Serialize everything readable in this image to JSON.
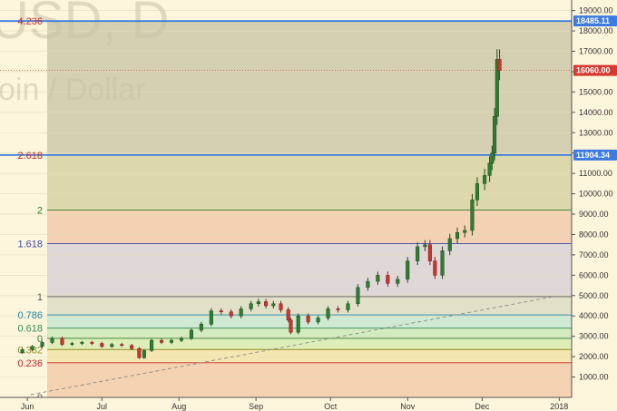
{
  "watermark": {
    "line1": "USD, D",
    "line2": "oin / Dollar"
  },
  "price_tags": [
    {
      "label": "18485.11",
      "value": 18485.11,
      "color": "#3d7be0"
    },
    {
      "label": "16060.00",
      "value": 16060.0,
      "color": "#d6392f"
    },
    {
      "label": "11904.34",
      "value": 11904.34,
      "color": "#3d7be0"
    }
  ],
  "chart_data": {
    "type": "line",
    "title": "",
    "ylabel": "",
    "xlabel": "",
    "ylim": [
      0,
      19250
    ],
    "y_ticks": [
      "1000.00",
      "2000.00",
      "3000.00",
      "4000.00",
      "5000.00",
      "6000.00",
      "7000.00",
      "8000.00",
      "9000.00",
      "10000.00",
      "11000.00",
      "12000.00",
      "13000.00",
      "14000.00",
      "15000.00",
      "16000.00",
      "17000.00",
      "18000.00",
      "19000.00"
    ],
    "x_ticks": [
      "Jun",
      "Jul",
      "Aug",
      "Sep",
      "Oct",
      "Nov",
      "Dec",
      "2018"
    ],
    "fib_levels": [
      {
        "label": "0",
        "value": 2900,
        "color": "#2e7d32"
      },
      {
        "label": "0.236",
        "value": 1700,
        "color": "#c62828"
      },
      {
        "label": "0",
        "value": 0,
        "color": "#555555"
      },
      {
        "label": "0.382",
        "value": 2350,
        "color": "#8e8e20"
      },
      {
        "label": "0.618",
        "value": 3400,
        "color": "#2e8b57"
      },
      {
        "label": "0.786",
        "value": 4050,
        "color": "#1e88a8"
      },
      {
        "label": "1",
        "value": 4950,
        "color": "#555555"
      },
      {
        "label": "1.618",
        "value": 7550,
        "color": "#3949ab"
      },
      {
        "label": "2",
        "value": 9200,
        "color": "#2e7d32"
      },
      {
        "label": "2.618",
        "value": 11904,
        "color": "#c62828"
      },
      {
        "label": "4.236",
        "value": 18485,
        "color": "#c62828"
      }
    ],
    "series": [
      {
        "values": [
          [
            "2017-05-26",
            2200
          ],
          [
            "2017-05-30",
            2350
          ],
          [
            "2017-06-03",
            2500
          ],
          [
            "2017-06-07",
            2700
          ],
          [
            "2017-06-11",
            2900
          ],
          [
            "2017-06-15",
            2600
          ],
          [
            "2017-06-19",
            2650
          ],
          [
            "2017-06-23",
            2700
          ],
          [
            "2017-06-27",
            2650
          ],
          [
            "2017-07-01",
            2500
          ],
          [
            "2017-07-05",
            2600
          ],
          [
            "2017-07-09",
            2550
          ],
          [
            "2017-07-13",
            2400
          ],
          [
            "2017-07-16",
            1950
          ],
          [
            "2017-07-18",
            2300
          ],
          [
            "2017-07-21",
            2800
          ],
          [
            "2017-07-25",
            2700
          ],
          [
            "2017-07-29",
            2800
          ],
          [
            "2017-08-02",
            2900
          ],
          [
            "2017-08-06",
            3300
          ],
          [
            "2017-08-10",
            3600
          ],
          [
            "2017-08-14",
            4250
          ],
          [
            "2017-08-18",
            4200
          ],
          [
            "2017-08-22",
            4000
          ],
          [
            "2017-08-26",
            4350
          ],
          [
            "2017-08-30",
            4600
          ],
          [
            "2017-09-02",
            4700
          ],
          [
            "2017-09-05",
            4500
          ],
          [
            "2017-09-08",
            4600
          ],
          [
            "2017-09-11",
            4300
          ],
          [
            "2017-09-14",
            3800
          ],
          [
            "2017-09-15",
            3200
          ],
          [
            "2017-09-18",
            4000
          ],
          [
            "2017-09-22",
            3700
          ],
          [
            "2017-09-26",
            3900
          ],
          [
            "2017-09-30",
            4350
          ],
          [
            "2017-10-04",
            4300
          ],
          [
            "2017-10-08",
            4600
          ],
          [
            "2017-10-12",
            5400
          ],
          [
            "2017-10-16",
            5700
          ],
          [
            "2017-10-20",
            6000
          ],
          [
            "2017-10-24",
            5600
          ],
          [
            "2017-10-28",
            5800
          ],
          [
            "2017-11-01",
            6700
          ],
          [
            "2017-11-05",
            7400
          ],
          [
            "2017-11-08",
            7500
          ],
          [
            "2017-11-10",
            6700
          ],
          [
            "2017-11-12",
            6000
          ],
          [
            "2017-11-15",
            7200
          ],
          [
            "2017-11-18",
            7800
          ],
          [
            "2017-11-21",
            8100
          ],
          [
            "2017-11-24",
            8200
          ],
          [
            "2017-11-27",
            9700
          ],
          [
            "2017-11-29",
            10500
          ],
          [
            "2017-12-02",
            10900
          ],
          [
            "2017-12-04",
            11500
          ],
          [
            "2017-12-05",
            12000
          ],
          [
            "2017-12-06",
            13800
          ],
          [
            "2017-12-07",
            16600
          ],
          [
            "2017-12-08",
            16060
          ]
        ]
      }
    ],
    "trendline": [
      [
        "2017-05-26",
        0
      ],
      [
        "2018-01-01",
        4950
      ]
    ]
  }
}
